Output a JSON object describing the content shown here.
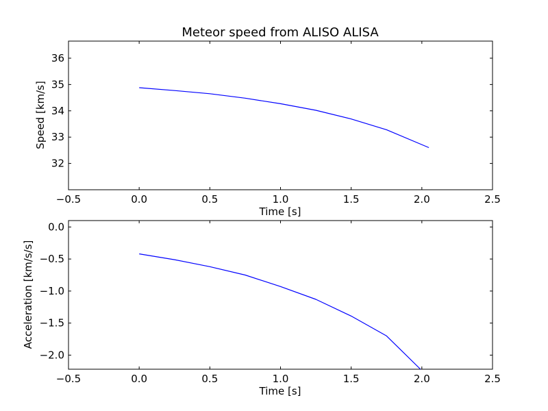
{
  "chart_data": [
    {
      "type": "line",
      "title": "Meteor speed from  ALISO ALISA",
      "xlabel": "Time [s]",
      "ylabel": "Speed [km/s]",
      "xlim": [
        -0.5,
        2.5
      ],
      "ylim": [
        31.0,
        36.65
      ],
      "xticks": [
        -0.5,
        0.0,
        0.5,
        1.0,
        1.5,
        2.0,
        2.5
      ],
      "xtick_labels": [
        "−0.5",
        "0.0",
        "0.5",
        "1.0",
        "1.5",
        "2.0",
        "2.5"
      ],
      "yticks": [
        32,
        33,
        34,
        35,
        36
      ],
      "ytick_labels": [
        "32",
        "33",
        "34",
        "35",
        "36"
      ],
      "grid": false,
      "series": [
        {
          "color": "#0000ff",
          "x": [
            0.0,
            0.25,
            0.5,
            0.75,
            1.0,
            1.25,
            1.5,
            1.75,
            2.05
          ],
          "y": [
            34.88,
            34.77,
            34.65,
            34.48,
            34.27,
            34.02,
            33.69,
            33.28,
            32.6
          ]
        }
      ]
    },
    {
      "type": "line",
      "title": "",
      "xlabel": "Time [s]",
      "ylabel": "Acceleration [km/s/s]",
      "xlim": [
        -0.5,
        2.5
      ],
      "ylim": [
        -2.22,
        0.1
      ],
      "xticks": [
        -0.5,
        0.0,
        0.5,
        1.0,
        1.5,
        2.0,
        2.5
      ],
      "xtick_labels": [
        "−0.5",
        "0.0",
        "0.5",
        "1.0",
        "1.5",
        "2.0",
        "2.5"
      ],
      "yticks": [
        0.0,
        -0.5,
        -1.0,
        -1.5,
        -2.0
      ],
      "ytick_labels": [
        "0.0",
        "−0.5",
        "−1.0",
        "−1.5",
        "−2.0"
      ],
      "grid": false,
      "series": [
        {
          "color": "#0000ff",
          "x": [
            0.0,
            0.25,
            0.5,
            0.75,
            1.0,
            1.25,
            1.5,
            1.75,
            1.99
          ],
          "y": [
            -0.42,
            -0.51,
            -0.62,
            -0.75,
            -0.93,
            -1.13,
            -1.39,
            -1.7,
            -2.22
          ]
        }
      ]
    }
  ]
}
